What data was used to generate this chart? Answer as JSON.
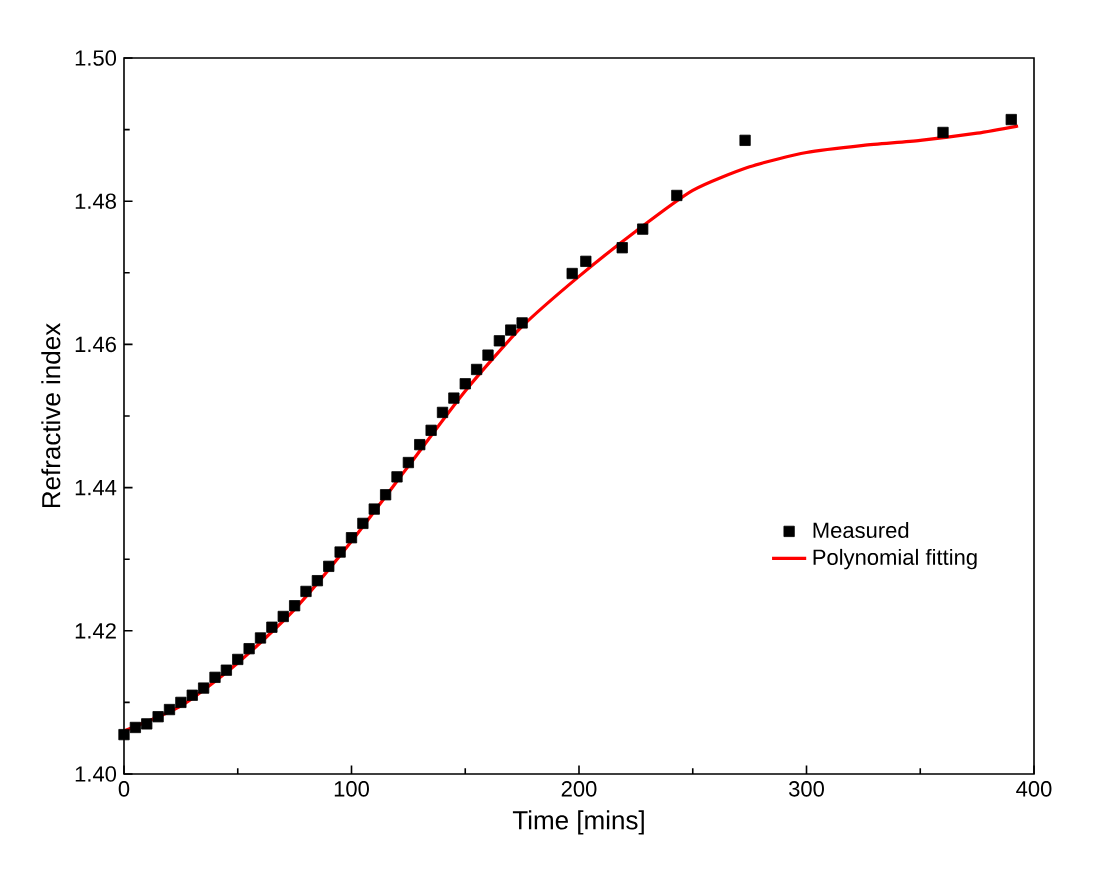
{
  "chart_data": {
    "type": "scatter",
    "xlabel": "Time [mins]",
    "ylabel": "Refractive index",
    "xlim": [
      0,
      400
    ],
    "xticks": [
      0,
      100,
      200,
      300,
      400
    ],
    "ylim": [
      1.4,
      1.5
    ],
    "yticks": [
      {
        "value": 1.4,
        "label": "1.40"
      },
      {
        "value": 1.42,
        "label": "1.42"
      },
      {
        "value": 1.44,
        "label": "1.44"
      },
      {
        "value": 1.46,
        "label": "1.46"
      },
      {
        "value": 1.48,
        "label": "1.48"
      },
      {
        "value": 1.5,
        "label": "1.50"
      }
    ],
    "legend": "right",
    "grid": false,
    "series": [
      {
        "name": "Measured",
        "marker": "square",
        "color": "#000000",
        "x": [
          0,
          5,
          10,
          15,
          20,
          25,
          30,
          35,
          40,
          45,
          50,
          55,
          60,
          65,
          70,
          75,
          80,
          85,
          90,
          95,
          100,
          105,
          110,
          115,
          120,
          125,
          130,
          135,
          140,
          145,
          150,
          155,
          160,
          165,
          170,
          175,
          197,
          203,
          219,
          228,
          243,
          273,
          360,
          390
        ],
        "values": [
          1.4055,
          1.4065,
          1.407,
          1.408,
          1.409,
          1.41,
          1.411,
          1.412,
          1.4135,
          1.4145,
          1.416,
          1.4175,
          1.419,
          1.4205,
          1.422,
          1.4235,
          1.4255,
          1.427,
          1.429,
          1.431,
          1.433,
          1.435,
          1.437,
          1.439,
          1.4415,
          1.4435,
          1.446,
          1.448,
          1.4505,
          1.4525,
          1.4545,
          1.4565,
          1.4585,
          1.4605,
          1.462,
          1.463,
          1.4699,
          1.4716,
          1.4735,
          1.4761,
          1.4808,
          1.4885,
          1.4896,
          1.4914
        ]
      },
      {
        "name": "Polynomial fitting",
        "type": "line",
        "marker": "none",
        "line_style": "solid",
        "color": "#ff0000",
        "x": [
          0,
          25,
          50,
          75,
          100,
          125,
          150,
          175,
          200,
          225,
          250,
          275,
          300,
          325,
          350,
          375,
          393
        ],
        "values": [
          1.406,
          1.4095,
          1.4155,
          1.423,
          1.4325,
          1.443,
          1.4535,
          1.4625,
          1.4695,
          1.4758,
          1.4815,
          1.4848,
          1.4868,
          1.4878,
          1.4885,
          1.4895,
          1.4905
        ]
      }
    ]
  }
}
